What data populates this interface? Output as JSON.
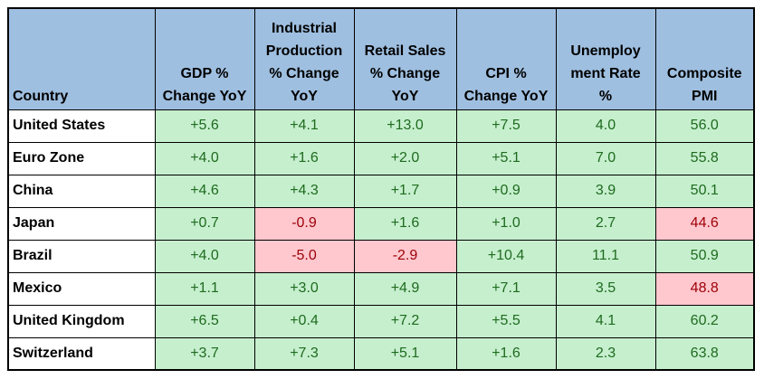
{
  "table": {
    "headers": [
      "Country",
      "GDP % Change YoY",
      "Industrial Production % Change YoY",
      "Retail Sales % Change YoY",
      "CPI % Change YoY",
      "Unemploy ment Rate %",
      "Composite PMI"
    ],
    "header_lines": [
      [
        "Country"
      ],
      [
        "GDP %",
        "Change YoY"
      ],
      [
        "Industrial",
        "Production",
        "% Change",
        "YoY"
      ],
      [
        "Retail Sales",
        "% Change",
        "YoY"
      ],
      [
        "CPI %",
        "Change YoY"
      ],
      [
        "Unemploy",
        "ment Rate",
        "%"
      ],
      [
        "Composite",
        "PMI"
      ]
    ],
    "rows": [
      {
        "country": "United States",
        "values": [
          "+5.6",
          "+4.1",
          "+13.0",
          "+7.5",
          "4.0",
          "56.0"
        ],
        "status": [
          "pos",
          "pos",
          "pos",
          "pos",
          "pos",
          "pos"
        ]
      },
      {
        "country": "Euro Zone",
        "values": [
          "+4.0",
          "+1.6",
          "+2.0",
          "+5.1",
          "7.0",
          "55.8"
        ],
        "status": [
          "pos",
          "pos",
          "pos",
          "pos",
          "pos",
          "pos"
        ]
      },
      {
        "country": "China",
        "values": [
          "+4.6",
          "+4.3",
          "+1.7",
          "+0.9",
          "3.9",
          "50.1"
        ],
        "status": [
          "pos",
          "pos",
          "pos",
          "pos",
          "pos",
          "pos"
        ]
      },
      {
        "country": "Japan",
        "values": [
          "+0.7",
          "-0.9",
          "+1.6",
          "+1.0",
          "2.7",
          "44.6"
        ],
        "status": [
          "pos",
          "neg",
          "pos",
          "pos",
          "pos",
          "neg"
        ]
      },
      {
        "country": "Brazil",
        "values": [
          "+4.0",
          "-5.0",
          "-2.9",
          "+10.4",
          "11.1",
          "50.9"
        ],
        "status": [
          "pos",
          "neg",
          "neg",
          "pos",
          "pos",
          "pos"
        ]
      },
      {
        "country": "Mexico",
        "values": [
          "+1.1",
          "+3.0",
          "+4.9",
          "+7.1",
          "3.5",
          "48.8"
        ],
        "status": [
          "pos",
          "pos",
          "pos",
          "pos",
          "pos",
          "neg"
        ]
      },
      {
        "country": "United Kingdom",
        "values": [
          "+6.5",
          "+0.4",
          "+7.2",
          "+5.5",
          "4.1",
          "60.2"
        ],
        "status": [
          "pos",
          "pos",
          "pos",
          "pos",
          "pos",
          "pos"
        ]
      },
      {
        "country": "Switzerland",
        "values": [
          "+3.7",
          "+7.3",
          "+5.1",
          "+1.6",
          "2.3",
          "63.8"
        ],
        "status": [
          "pos",
          "pos",
          "pos",
          "pos",
          "pos",
          "pos"
        ]
      }
    ]
  },
  "colors": {
    "header_bg": "#9fbfe0",
    "positive_bg": "#c6efce",
    "negative_bg": "#ffc7ce",
    "negative_text": "#9c0006"
  }
}
